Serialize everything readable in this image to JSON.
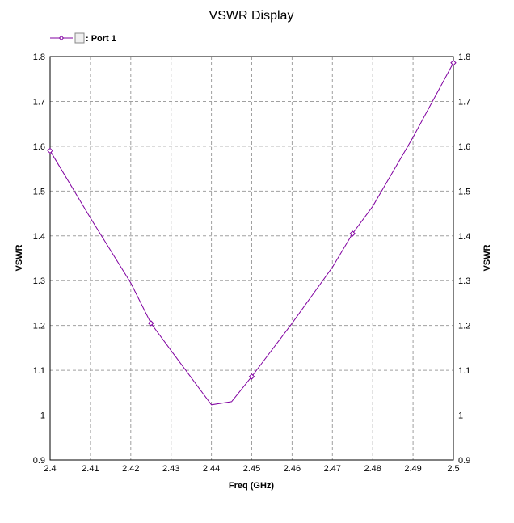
{
  "chart_data": {
    "type": "line",
    "title": "VSWR Display",
    "xlabel": "Freq (GHz)",
    "ylabel": "VSWR",
    "ylabel_right": "VSWR",
    "xlim": [
      2.4,
      2.5
    ],
    "ylim": [
      0.9,
      1.8
    ],
    "grid": true,
    "legend_position": "top-left",
    "xticks": [
      "2.4",
      "2.41",
      "2.42",
      "2.43",
      "2.44",
      "2.45",
      "2.46",
      "2.47",
      "2.48",
      "2.49",
      "2.5"
    ],
    "yticks": [
      "0.9",
      "1",
      "1.1",
      "1.2",
      "1.3",
      "1.4",
      "1.5",
      "1.6",
      "1.7",
      "1.8"
    ],
    "series": [
      {
        "name": ": Port 1",
        "color": "#8000a0",
        "x": [
          2.4,
          2.41,
          2.42,
          2.425,
          2.43,
          2.44,
          2.445,
          2.45,
          2.46,
          2.47,
          2.475,
          2.48,
          2.49,
          2.5
        ],
        "y": [
          1.59,
          1.44,
          1.295,
          1.205,
          1.144,
          1.023,
          1.03,
          1.086,
          1.205,
          1.33,
          1.405,
          1.466,
          1.62,
          1.786
        ],
        "markers_x": [
          2.4,
          2.425,
          2.45,
          2.475,
          2.5
        ]
      }
    ]
  }
}
